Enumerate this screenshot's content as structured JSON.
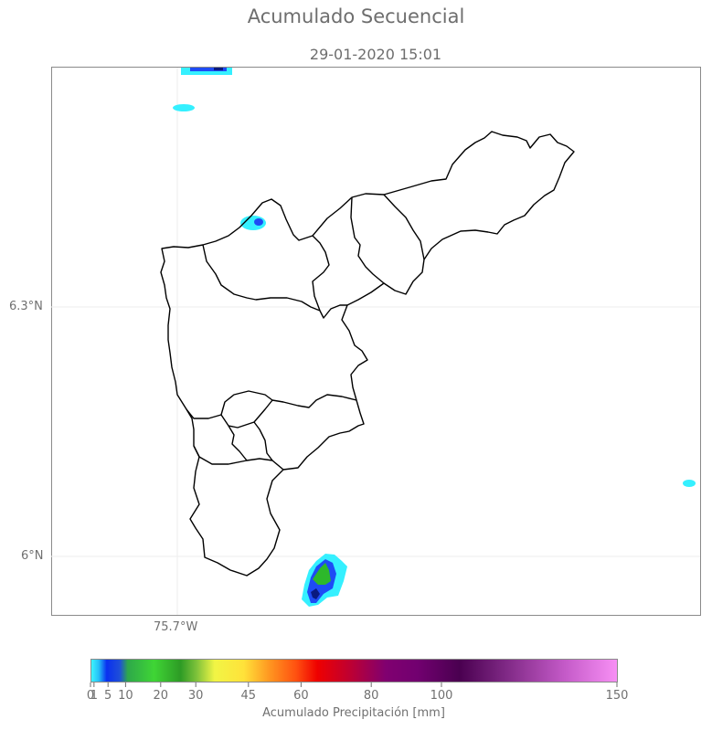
{
  "title": "Acumulado Secuencial",
  "subtitle": "29-01-2020 15:01",
  "axes": {
    "lat_ticks": [
      {
        "label": "6.3°N",
        "value": 6.3
      },
      {
        "label": "6°N",
        "value": 6.0
      }
    ],
    "lon_ticks": [
      {
        "label": "75.7°W",
        "value": -75.7
      }
    ]
  },
  "colorbar": {
    "title": "Acumulado Precipitación [mm]",
    "ticks": [
      "0",
      "1",
      "5",
      "10",
      "20",
      "30",
      "45",
      "60",
      "80",
      "100",
      "150"
    ],
    "tick_values": [
      0,
      1,
      5,
      10,
      20,
      30,
      45,
      60,
      80,
      100,
      150
    ],
    "colors": {
      "light_blue": "#35f0ff",
      "blue": "#1e4bf5",
      "green": "#2db82b",
      "yellow": "#ffff40",
      "orange": "#ff8a1a",
      "red": "#ee0000",
      "purple": "#7a0a78",
      "dark_purple": "#4e0052",
      "pink": "#f58ef5"
    }
  },
  "colors": {
    "boundary": "#000000",
    "frame": "#8a8a8a",
    "text": "#707070"
  }
}
